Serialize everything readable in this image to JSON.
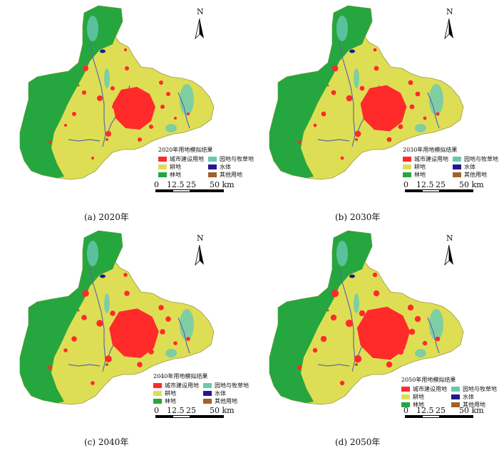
{
  "colors": {
    "urban": "#ff2a2a",
    "garden": "#66c9b4",
    "farmland": "#dede55",
    "water": "#1f1a8a",
    "forest": "#26a63f",
    "other": "#a0612e",
    "river": "#5a6aa8"
  },
  "north_label": "N",
  "scale": {
    "labels": [
      "0",
      "12.5",
      "25",
      "50 km"
    ]
  },
  "legend_items": [
    {
      "label": "城市建设用地",
      "color_key": "urban"
    },
    {
      "label": "园地与牧草地",
      "color_key": "garden"
    },
    {
      "label": "耕地",
      "color_key": "farmland"
    },
    {
      "label": "水体",
      "color_key": "water"
    },
    {
      "label": "林地",
      "color_key": "forest"
    },
    {
      "label": "其他用地",
      "color_key": "other"
    }
  ],
  "panels": [
    {
      "legend_title": "2020年用地模拟结果",
      "caption": "(a) 2020年"
    },
    {
      "legend_title": "2030年用地模拟结果",
      "caption": "(b) 2030年"
    },
    {
      "legend_title": "2040年用地模拟结果",
      "caption": "(c) 2040年"
    },
    {
      "legend_title": "2050年用地模拟结果",
      "caption": "(d) 2050年"
    }
  ]
}
